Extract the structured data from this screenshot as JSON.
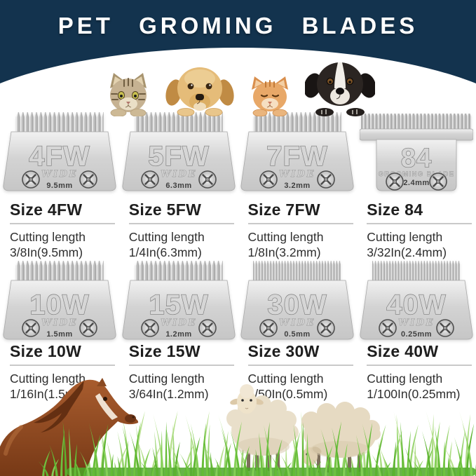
{
  "banner": {
    "title": "PET GROMING BLADES"
  },
  "pets": [
    {
      "name": "tabby-cat"
    },
    {
      "name": "golden-retriever-dog"
    },
    {
      "name": "orange-cat"
    },
    {
      "name": "black-white-dog"
    }
  ],
  "blades": [
    {
      "engraving": "4FW",
      "style_label": "WIDE",
      "cut_mm": "9.5mm",
      "heading": "Size 4FW",
      "detail_line1": "Cutting length",
      "detail_line2": "3/8In(9.5mm)"
    },
    {
      "engraving": "5FW",
      "style_label": "WIDE",
      "cut_mm": "6.3mm",
      "heading": "Size 5FW",
      "detail_line1": "Cutting length",
      "detail_line2": "1/4In(6.3mm)"
    },
    {
      "engraving": "7FW",
      "style_label": "WIDE",
      "cut_mm": "3.2mm",
      "heading": "Size 7FW",
      "detail_line1": "Cutting length",
      "detail_line2": "1/8In(3.2mm)"
    },
    {
      "engraving": "84",
      "style_label": "GROOMING BLADE",
      "cut_mm": "2.4mm",
      "heading": "Size 84",
      "detail_line1": "Cutting length",
      "detail_line2": "3/32In(2.4mm)"
    },
    {
      "engraving": "10W",
      "style_label": "WIDE",
      "cut_mm": "1.5mm",
      "heading": "Size 10W",
      "detail_line1": "Cutting length",
      "detail_line2": "1/16In(1.5mm)"
    },
    {
      "engraving": "15W",
      "style_label": "WIDE",
      "cut_mm": "1.2mm",
      "heading": "Size 15W",
      "detail_line1": "Cutting length",
      "detail_line2": "3/64In(1.2mm)"
    },
    {
      "engraving": "30W",
      "style_label": "WIDE",
      "cut_mm": "0.5mm",
      "heading": "Size 30W",
      "detail_line1": "Cutting length",
      "detail_line2": "1/50In(0.5mm)"
    },
    {
      "engraving": "40W",
      "style_label": "WIDE",
      "cut_mm": "0.25mm",
      "heading": "Size 40W",
      "detail_line1": "Cutting length",
      "detail_line2": "1/100In(0.25mm)"
    }
  ],
  "scene_animals": [
    {
      "name": "horse"
    },
    {
      "name": "sheep-standing"
    },
    {
      "name": "sheep-grazing"
    }
  ],
  "colors": {
    "navy": "#13334e",
    "blade_light": "#f1f1f1",
    "blade_dark": "#c6c6c6",
    "grass_green": "#5bb32f",
    "heading_text": "#1e1e1e"
  }
}
